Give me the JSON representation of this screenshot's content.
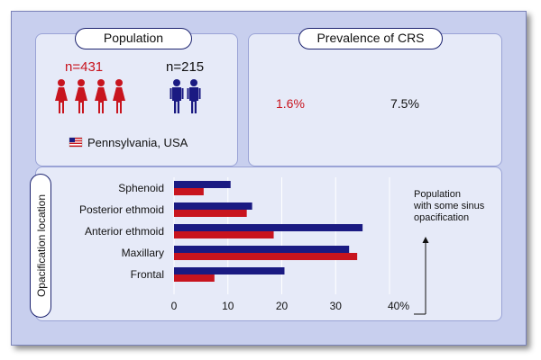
{
  "colors": {
    "red": "#c8141e",
    "blue": "#1a1a82",
    "pie_bg": "#b5bfe2"
  },
  "population": {
    "title": "Population",
    "female_n": "n=431",
    "male_n": "n=215",
    "location": "Pennsylvania, USA",
    "flag_icon": "us-flag-icon"
  },
  "prevalence": {
    "title": "Prevalence of CRS",
    "female_pct_label": "1.6%",
    "male_pct_label": "7.5%",
    "female_pct": 1.6,
    "male_pct": 7.5
  },
  "chart_data": {
    "type": "bar",
    "orientation": "horizontal",
    "ylabel": "Opacification location",
    "categories": [
      "Sphenoid",
      "Posterior ethmoid",
      "Anterior ethmoid",
      "Maxillary",
      "Frontal"
    ],
    "series": [
      {
        "name": "male",
        "color": "#1a1a82",
        "values": [
          10.5,
          14.5,
          35,
          32.5,
          20.5
        ]
      },
      {
        "name": "female",
        "color": "#c8141e",
        "values": [
          5.5,
          13.5,
          18.5,
          34,
          7.5
        ]
      }
    ],
    "xlim": [
      0,
      40
    ],
    "ticks": [
      "0",
      "10",
      "20",
      "30",
      "40%"
    ],
    "annotation": "Population with some sinus opacification",
    "grid": true
  }
}
